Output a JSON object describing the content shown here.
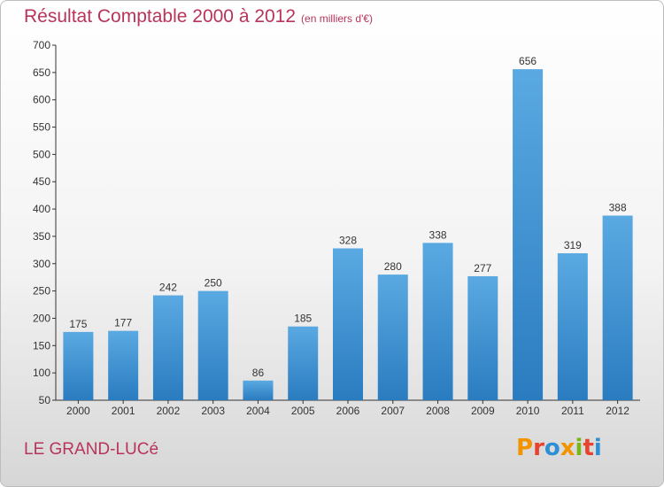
{
  "title": "Résultat Comptable 2000 à 2012",
  "unit_note": "(en milliers d'€)",
  "city": "LE GRAND-LUCé",
  "logo": {
    "text": "Proxiti",
    "colors": [
      "#f29400",
      "#e8432e",
      "#2e8fd6",
      "#f29400",
      "#7ab51d",
      "#e8432e",
      "#2e8fd6"
    ]
  },
  "colors": {
    "bar_top": "#5aa9e2",
    "bar_bottom": "#2a7cc0",
    "title": "#b8345a"
  },
  "chart_data": {
    "type": "bar",
    "categories": [
      "2000",
      "2001",
      "2002",
      "2003",
      "2004",
      "2005",
      "2006",
      "2007",
      "2008",
      "2009",
      "2010",
      "2011",
      "2012"
    ],
    "values": [
      175,
      177,
      242,
      250,
      86,
      185,
      328,
      280,
      338,
      277,
      656,
      319,
      388
    ],
    "ylim": [
      50,
      700
    ],
    "yticks": [
      50,
      100,
      150,
      200,
      250,
      300,
      350,
      400,
      450,
      500,
      550,
      600,
      650,
      700
    ],
    "grid": false,
    "legend": "none"
  }
}
